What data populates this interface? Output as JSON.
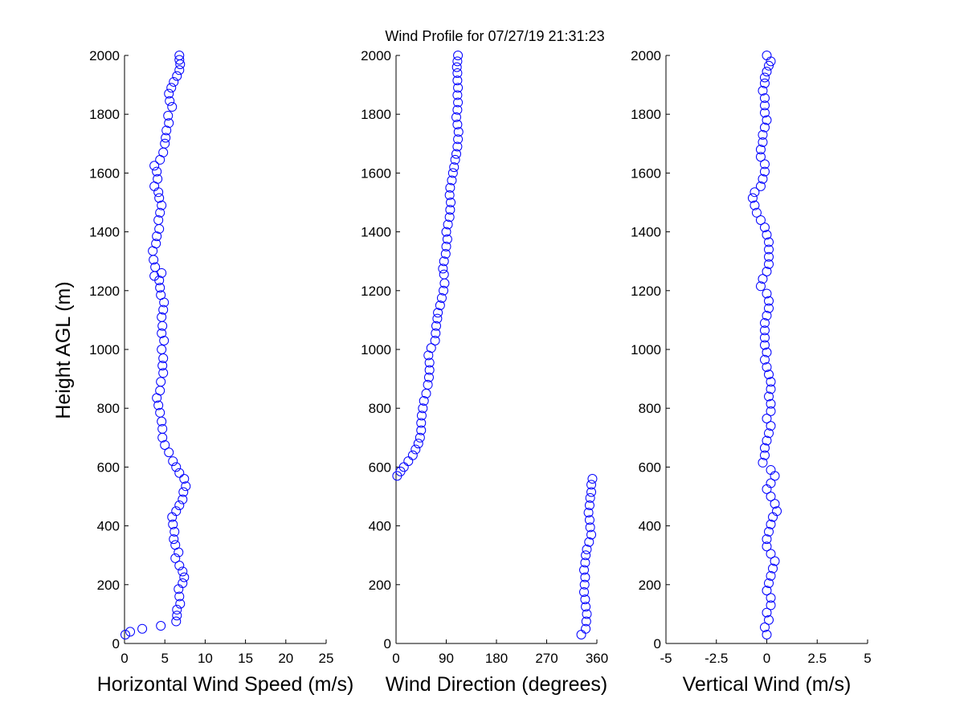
{
  "title": "Wind Profile for  07/27/19 21:31:23",
  "ylabel": "Height AGL (m)",
  "marker_color": "#0000ff",
  "chart_data": [
    {
      "type": "scatter",
      "xlabel": "Horizontal Wind Speed (m/s)",
      "ylabel": "Height AGL (m)",
      "xlim": [
        0,
        25
      ],
      "ylim": [
        0,
        2000
      ],
      "xticks": [
        "0",
        "5",
        "10",
        "15",
        "20",
        "25"
      ],
      "yticks": [
        "0",
        "200",
        "400",
        "600",
        "800",
        "1000",
        "1200",
        "1400",
        "1600",
        "1800",
        "2000"
      ],
      "grid": false,
      "series": [
        {
          "points": [
            [
              0.1,
              30
            ],
            [
              0.7,
              40
            ],
            [
              2.2,
              50
            ],
            [
              4.5,
              60
            ],
            [
              6.4,
              75
            ],
            [
              6.5,
              95
            ],
            [
              6.5,
              115
            ],
            [
              6.9,
              135
            ],
            [
              6.8,
              160
            ],
            [
              6.7,
              185
            ],
            [
              7.2,
              205
            ],
            [
              7.4,
              225
            ],
            [
              7.2,
              245
            ],
            [
              6.8,
              265
            ],
            [
              6.3,
              290
            ],
            [
              6.7,
              310
            ],
            [
              6.3,
              335
            ],
            [
              6.1,
              355
            ],
            [
              6.2,
              380
            ],
            [
              6.0,
              405
            ],
            [
              5.9,
              430
            ],
            [
              6.4,
              450
            ],
            [
              6.8,
              470
            ],
            [
              7.2,
              490
            ],
            [
              7.3,
              515
            ],
            [
              7.6,
              535
            ],
            [
              7.4,
              560
            ],
            [
              6.8,
              580
            ],
            [
              6.4,
              600
            ],
            [
              6.0,
              620
            ],
            [
              5.5,
              650
            ],
            [
              5.0,
              675
            ],
            [
              4.7,
              700
            ],
            [
              4.7,
              730
            ],
            [
              4.6,
              755
            ],
            [
              4.4,
              785
            ],
            [
              4.2,
              810
            ],
            [
              4.0,
              835
            ],
            [
              4.4,
              860
            ],
            [
              4.5,
              890
            ],
            [
              4.8,
              920
            ],
            [
              4.7,
              945
            ],
            [
              4.8,
              970
            ],
            [
              4.6,
              1000
            ],
            [
              4.9,
              1030
            ],
            [
              4.6,
              1055
            ],
            [
              4.7,
              1080
            ],
            [
              4.6,
              1110
            ],
            [
              4.8,
              1135
            ],
            [
              4.9,
              1160
            ],
            [
              4.5,
              1185
            ],
            [
              4.4,
              1210
            ],
            [
              4.3,
              1235
            ],
            [
              3.7,
              1250
            ],
            [
              4.6,
              1260
            ],
            [
              3.8,
              1280
            ],
            [
              3.6,
              1305
            ],
            [
              3.5,
              1335
            ],
            [
              3.9,
              1360
            ],
            [
              4.0,
              1385
            ],
            [
              4.3,
              1410
            ],
            [
              4.2,
              1440
            ],
            [
              4.4,
              1465
            ],
            [
              4.6,
              1490
            ],
            [
              4.3,
              1515
            ],
            [
              4.2,
              1535
            ],
            [
              3.7,
              1555
            ],
            [
              4.1,
              1580
            ],
            [
              4.0,
              1605
            ],
            [
              3.7,
              1625
            ],
            [
              4.4,
              1645
            ],
            [
              4.8,
              1670
            ],
            [
              5.0,
              1700
            ],
            [
              5.1,
              1720
            ],
            [
              5.2,
              1745
            ],
            [
              5.5,
              1770
            ],
            [
              5.4,
              1795
            ],
            [
              5.9,
              1825
            ],
            [
              5.6,
              1845
            ],
            [
              5.5,
              1870
            ],
            [
              5.8,
              1890
            ],
            [
              6.1,
              1910
            ],
            [
              6.5,
              1930
            ],
            [
              6.8,
              1950
            ],
            [
              6.9,
              1970
            ],
            [
              6.8,
              1985
            ],
            [
              6.8,
              2000
            ]
          ]
        }
      ]
    },
    {
      "type": "scatter",
      "xlabel": "Wind Direction (degrees)",
      "ylabel": "",
      "xlim": [
        0,
        360
      ],
      "ylim": [
        0,
        2000
      ],
      "xticks": [
        "0",
        "90",
        "180",
        "270",
        "360"
      ],
      "yticks": [
        "0",
        "200",
        "400",
        "600",
        "800",
        "1000",
        "1200",
        "1400",
        "1600",
        "1800",
        "2000"
      ],
      "grid": false,
      "series": [
        {
          "points": [
            [
              332,
              30
            ],
            [
              340,
              50
            ],
            [
              341,
              75
            ],
            [
              342,
              100
            ],
            [
              340,
              125
            ],
            [
              339,
              150
            ],
            [
              337,
              175
            ],
            [
              338,
              200
            ],
            [
              339,
              225
            ],
            [
              337,
              250
            ],
            [
              339,
              275
            ],
            [
              340,
              300
            ],
            [
              342,
              320
            ],
            [
              346,
              345
            ],
            [
              350,
              370
            ],
            [
              348,
              395
            ],
            [
              347,
              420
            ],
            [
              345,
              445
            ],
            [
              347,
              470
            ],
            [
              348,
              495
            ],
            [
              350,
              515
            ],
            [
              350,
              540
            ],
            [
              352,
              560
            ],
            [
              2,
              570
            ],
            [
              8,
              585
            ],
            [
              14,
              600
            ],
            [
              22,
              620
            ],
            [
              30,
              640
            ],
            [
              35,
              660
            ],
            [
              40,
              680
            ],
            [
              43,
              700
            ],
            [
              45,
              725
            ],
            [
              45,
              750
            ],
            [
              46,
              775
            ],
            [
              48,
              800
            ],
            [
              50,
              825
            ],
            [
              54,
              850
            ],
            [
              57,
              880
            ],
            [
              59,
              905
            ],
            [
              60,
              930
            ],
            [
              60,
              955
            ],
            [
              58,
              980
            ],
            [
              63,
              1005
            ],
            [
              70,
              1030
            ],
            [
              71,
              1055
            ],
            [
              72,
              1080
            ],
            [
              74,
              1105
            ],
            [
              75,
              1125
            ],
            [
              79,
              1150
            ],
            [
              82,
              1175
            ],
            [
              85,
              1200
            ],
            [
              87,
              1225
            ],
            [
              86,
              1255
            ],
            [
              84,
              1275
            ],
            [
              86,
              1300
            ],
            [
              89,
              1325
            ],
            [
              90,
              1350
            ],
            [
              92,
              1375
            ],
            [
              90,
              1400
            ],
            [
              93,
              1425
            ],
            [
              96,
              1450
            ],
            [
              97,
              1475
            ],
            [
              98,
              1500
            ],
            [
              96,
              1525
            ],
            [
              97,
              1550
            ],
            [
              100,
              1575
            ],
            [
              102,
              1600
            ],
            [
              104,
              1620
            ],
            [
              106,
              1645
            ],
            [
              108,
              1665
            ],
            [
              110,
              1690
            ],
            [
              111,
              1715
            ],
            [
              112,
              1740
            ],
            [
              110,
              1765
            ],
            [
              108,
              1790
            ],
            [
              110,
              1815
            ],
            [
              111,
              1840
            ],
            [
              110,
              1865
            ],
            [
              111,
              1890
            ],
            [
              110,
              1915
            ],
            [
              110,
              1940
            ],
            [
              109,
              1960
            ],
            [
              110,
              1980
            ],
            [
              111,
              2000
            ]
          ]
        }
      ]
    },
    {
      "type": "scatter",
      "xlabel": "Vertical Wind (m/s)",
      "ylabel": "",
      "xlim": [
        -5,
        5
      ],
      "ylim": [
        0,
        2000
      ],
      "xticks": [
        "-5",
        "-2.5",
        "0",
        "2.5",
        "5"
      ],
      "yticks": [
        "0",
        "200",
        "400",
        "600",
        "800",
        "1000",
        "1200",
        "1400",
        "1600",
        "1800",
        "2000"
      ],
      "grid": false,
      "series": [
        {
          "points": [
            [
              0.0,
              30
            ],
            [
              -0.1,
              55
            ],
            [
              0.1,
              80
            ],
            [
              0.0,
              105
            ],
            [
              0.2,
              130
            ],
            [
              0.2,
              155
            ],
            [
              0.0,
              180
            ],
            [
              0.1,
              205
            ],
            [
              0.2,
              230
            ],
            [
              0.3,
              255
            ],
            [
              0.4,
              280
            ],
            [
              0.2,
              305
            ],
            [
              0.0,
              330
            ],
            [
              0.0,
              355
            ],
            [
              0.1,
              380
            ],
            [
              0.2,
              405
            ],
            [
              0.3,
              430
            ],
            [
              0.5,
              450
            ],
            [
              0.4,
              475
            ],
            [
              0.2,
              500
            ],
            [
              0.0,
              525
            ],
            [
              0.2,
              545
            ],
            [
              0.4,
              570
            ],
            [
              0.2,
              590
            ],
            [
              -0.2,
              615
            ],
            [
              -0.1,
              640
            ],
            [
              -0.1,
              665
            ],
            [
              0.0,
              690
            ],
            [
              0.1,
              715
            ],
            [
              0.2,
              740
            ],
            [
              0.0,
              765
            ],
            [
              0.2,
              790
            ],
            [
              0.2,
              815
            ],
            [
              0.1,
              840
            ],
            [
              0.2,
              865
            ],
            [
              0.2,
              890
            ],
            [
              0.1,
              915
            ],
            [
              0.0,
              940
            ],
            [
              -0.1,
              965
            ],
            [
              0.0,
              990
            ],
            [
              -0.1,
              1015
            ],
            [
              -0.1,
              1040
            ],
            [
              -0.1,
              1065
            ],
            [
              -0.1,
              1090
            ],
            [
              0.0,
              1115
            ],
            [
              0.1,
              1140
            ],
            [
              0.1,
              1165
            ],
            [
              0.0,
              1190
            ],
            [
              -0.3,
              1215
            ],
            [
              -0.2,
              1240
            ],
            [
              0.0,
              1265
            ],
            [
              0.1,
              1290
            ],
            [
              0.1,
              1315
            ],
            [
              0.1,
              1340
            ],
            [
              0.1,
              1365
            ],
            [
              0.0,
              1390
            ],
            [
              -0.1,
              1415
            ],
            [
              -0.3,
              1440
            ],
            [
              -0.5,
              1465
            ],
            [
              -0.6,
              1490
            ],
            [
              -0.7,
              1515
            ],
            [
              -0.6,
              1535
            ],
            [
              -0.3,
              1555
            ],
            [
              -0.2,
              1580
            ],
            [
              -0.1,
              1605
            ],
            [
              -0.1,
              1630
            ],
            [
              -0.3,
              1655
            ],
            [
              -0.3,
              1680
            ],
            [
              -0.2,
              1705
            ],
            [
              -0.2,
              1730
            ],
            [
              -0.1,
              1755
            ],
            [
              0.0,
              1780
            ],
            [
              -0.1,
              1805
            ],
            [
              -0.1,
              1830
            ],
            [
              -0.1,
              1855
            ],
            [
              -0.2,
              1880
            ],
            [
              -0.1,
              1905
            ],
            [
              -0.1,
              1925
            ],
            [
              0.0,
              1945
            ],
            [
              0.1,
              1965
            ],
            [
              0.2,
              1980
            ],
            [
              0.0,
              2000
            ]
          ]
        }
      ]
    }
  ]
}
